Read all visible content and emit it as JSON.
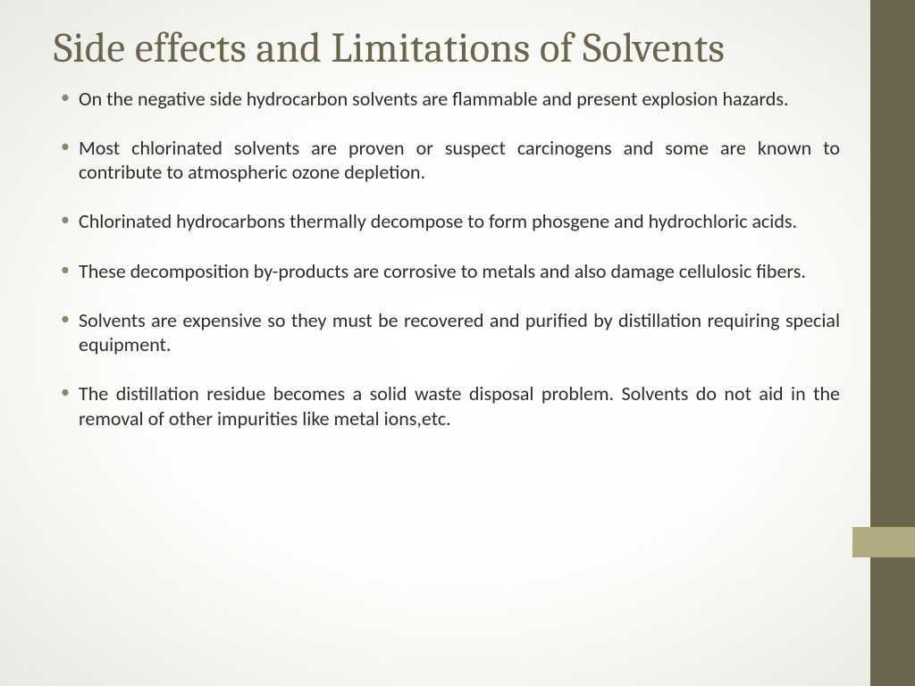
{
  "slide": {
    "title": "Side effects and Limitations of Solvents",
    "bullets": [
      "On the negative side hydrocarbon solvents are flammable and present explosion hazards.",
      "Most chlorinated solvents are proven or suspect carcinogens and some are known to contribute to atmospheric ozone depletion.",
      "Chlorinated hydrocarbons thermally decompose to form phosgene and hydrochloric acids.",
      "These decomposition by-products are corrosive to metals and also damage cellulosic fibers.",
      "Solvents are expensive so they must be recovered and purified by distillation requiring special equipment.",
      "The distillation residue becomes a solid waste disposal problem. Solvents do not aid in the removal of other impurities like metal ions,etc."
    ]
  },
  "theme": {
    "title_color": "#6b654d",
    "body_color": "#2d2d2d",
    "bullet_color": "#8c886f",
    "sidebar_color": "#6b654d",
    "accent_color": "#b0ac7e",
    "title_fontsize": 47,
    "body_fontsize": 22
  }
}
